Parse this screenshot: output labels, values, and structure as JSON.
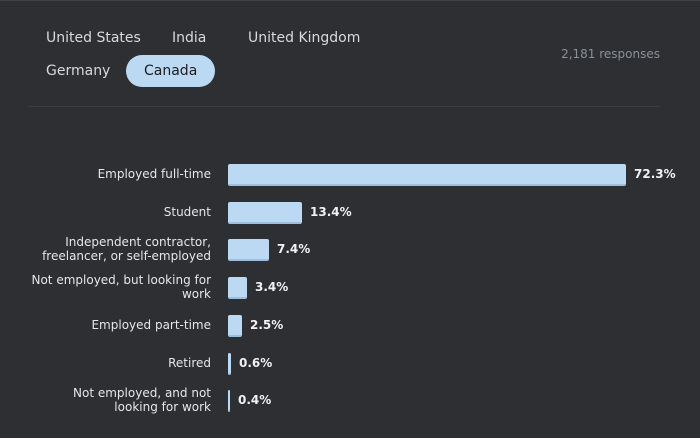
{
  "tabs": [
    {
      "label": "United States",
      "active": false
    },
    {
      "label": "India",
      "active": false
    },
    {
      "label": "United Kingdom",
      "active": false
    },
    {
      "label": "Germany",
      "active": false
    },
    {
      "label": "Canada",
      "active": true
    }
  ],
  "responses_label": "2,181 responses",
  "colors": {
    "bar": "#bcd9f3",
    "background": "#2d2f33"
  },
  "chart_data": {
    "type": "bar",
    "orientation": "horizontal",
    "categories": [
      "Employed full-time",
      "Student",
      "Independent contractor, freelancer, or self-employed",
      "Not employed, but looking for work",
      "Employed part-time",
      "Retired",
      "Not employed, and not looking for work"
    ],
    "values": [
      72.3,
      13.4,
      7.4,
      3.4,
      2.5,
      0.6,
      0.4
    ],
    "value_labels": [
      "72.3%",
      "13.4%",
      "7.4%",
      "3.4%",
      "2.5%",
      "0.6%",
      "0.4%"
    ],
    "unit": "%",
    "xlim": [
      0,
      72.3
    ],
    "grid": false
  }
}
